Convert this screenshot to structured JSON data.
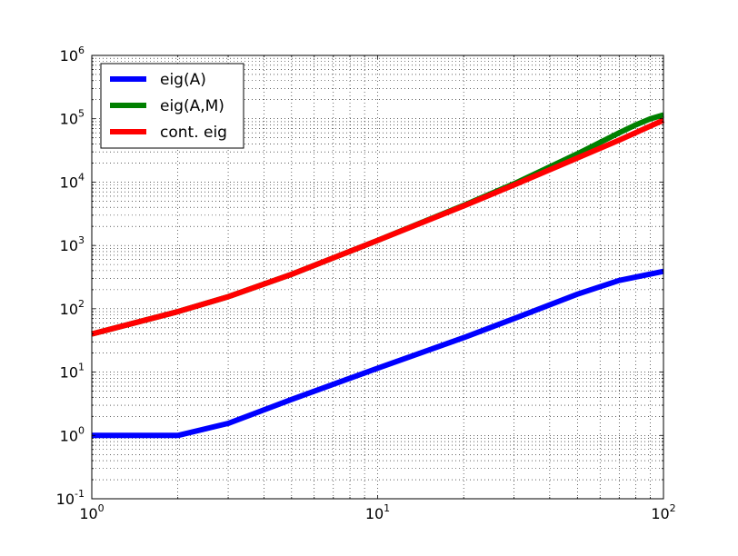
{
  "chart_data": {
    "type": "line",
    "xscale": "log",
    "yscale": "log",
    "xlim": [
      1,
      100
    ],
    "ylim": [
      0.1,
      1000000
    ],
    "grid": "major-and-minor, dotted",
    "legend_position": "top-left",
    "x_ticks": [
      {
        "value": 1,
        "base": "10",
        "exp": "0"
      },
      {
        "value": 10,
        "base": "10",
        "exp": "1"
      },
      {
        "value": 100,
        "base": "10",
        "exp": "2"
      }
    ],
    "y_ticks": [
      {
        "value": 0.1,
        "base": "10",
        "exp": "-1"
      },
      {
        "value": 1,
        "base": "10",
        "exp": "0"
      },
      {
        "value": 10,
        "base": "10",
        "exp": "1"
      },
      {
        "value": 100,
        "base": "10",
        "exp": "2"
      },
      {
        "value": 1000,
        "base": "10",
        "exp": "3"
      },
      {
        "value": 10000,
        "base": "10",
        "exp": "4"
      },
      {
        "value": 100000,
        "base": "10",
        "exp": "5"
      },
      {
        "value": 1000000,
        "base": "10",
        "exp": "6"
      }
    ],
    "series": [
      {
        "name": "eig(A)",
        "color": "#0000ff",
        "x": [
          1,
          2,
          3,
          5,
          10,
          20,
          30,
          50,
          70,
          100
        ],
        "y": [
          1,
          1,
          1.55,
          3.7,
          11.5,
          35,
          70,
          170,
          280,
          390
        ]
      },
      {
        "name": "eig(A,M)",
        "color": "#008000",
        "x": [
          1,
          2,
          3,
          5,
          10,
          20,
          30,
          50,
          70,
          80,
          90,
          100
        ],
        "y": [
          40,
          90,
          155,
          350,
          1200,
          4300,
          9400,
          28000,
          60000,
          80000,
          100000,
          115000
        ]
      },
      {
        "name": "cont. eig",
        "color": "#ff0000",
        "x": [
          1,
          2,
          3,
          5,
          10,
          20,
          30,
          50,
          70,
          100
        ],
        "y": [
          40,
          90,
          155,
          350,
          1200,
          4200,
          9000,
          24000,
          46000,
          95000
        ]
      }
    ]
  }
}
